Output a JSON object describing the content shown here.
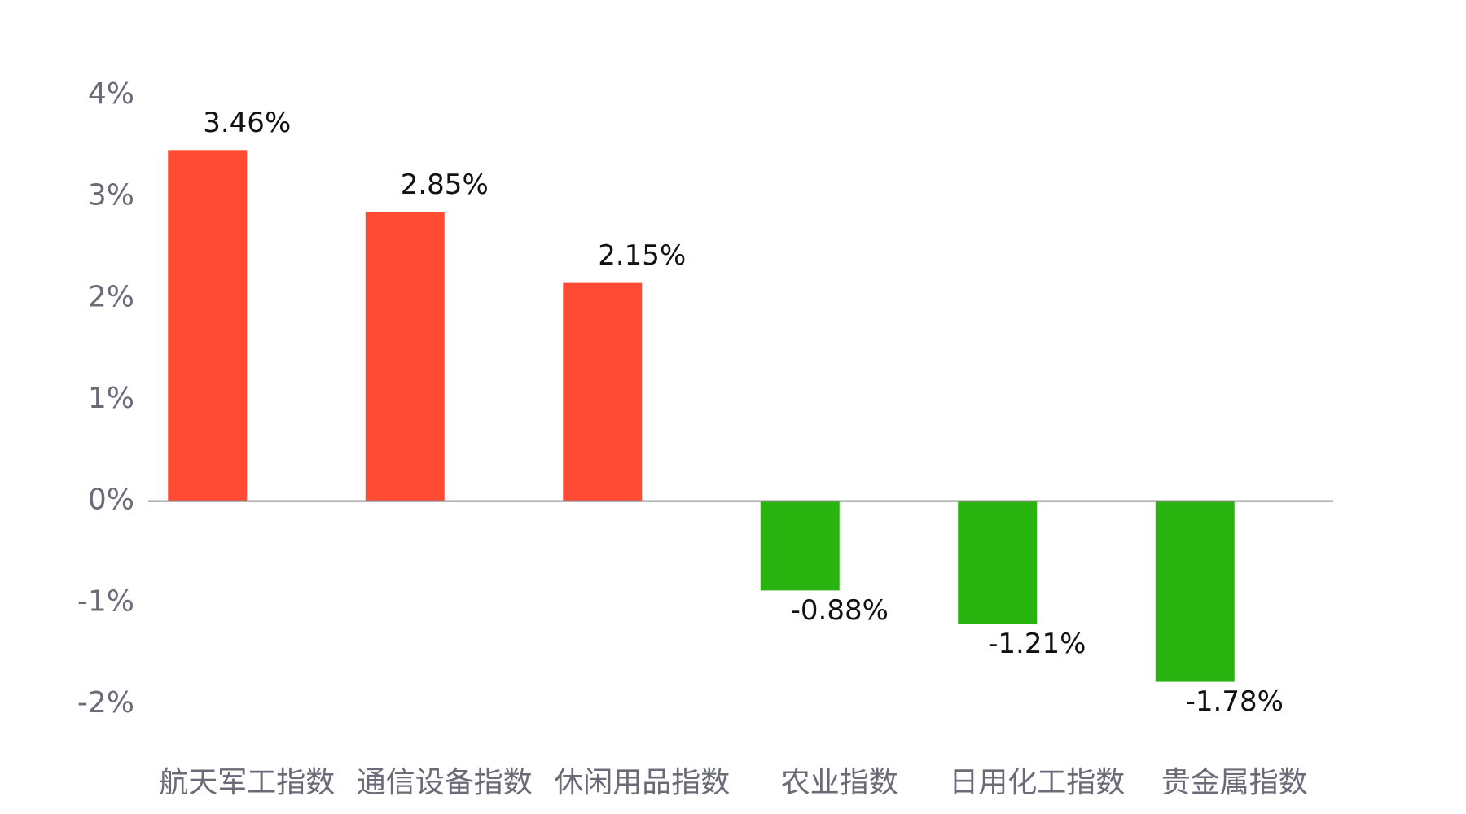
{
  "chart_data": {
    "type": "bar",
    "categories": [
      "航天军工指数",
      "通信设备指数",
      "休闲用品指数",
      "农业指数",
      "日用化工指数",
      "贵金属指数"
    ],
    "values": [
      3.46,
      2.85,
      2.15,
      -0.88,
      -1.21,
      -1.78
    ],
    "value_labels": [
      "3.46%",
      "2.85%",
      "2.15%",
      "-0.88%",
      "-1.21%",
      "-1.78%"
    ],
    "colors": [
      "#ff4b33",
      "#ff4b33",
      "#ff4b33",
      "#29b30f",
      "#29b30f",
      "#29b30f"
    ],
    "ylim": [
      -2,
      4
    ],
    "yticks": [
      {
        "value": 4,
        "label": "4%"
      },
      {
        "value": 3,
        "label": "3%"
      },
      {
        "value": 2,
        "label": "2%"
      },
      {
        "value": 1,
        "label": "1%"
      },
      {
        "value": 0,
        "label": "0%"
      },
      {
        "value": -1,
        "label": "-1%"
      },
      {
        "value": -2,
        "label": "-2%"
      }
    ],
    "grid": false
  }
}
